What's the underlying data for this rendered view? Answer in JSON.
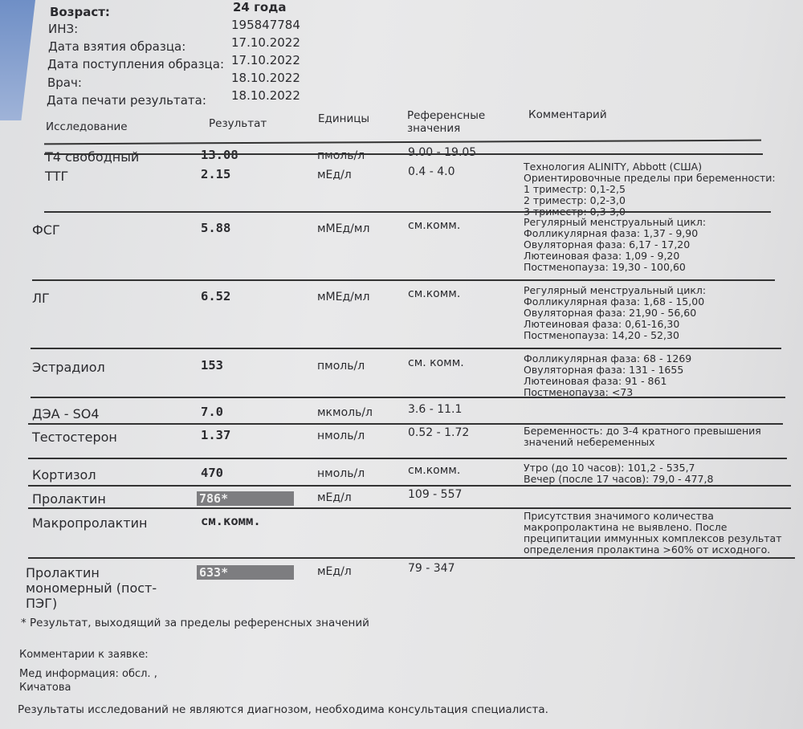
{
  "header": {
    "fields": [
      {
        "label": "Возраст:",
        "value": "24 года"
      },
      {
        "label": "ИНЗ:",
        "value": "195847784"
      },
      {
        "label": "Дата взятия образца:",
        "value": "17.10.2022"
      },
      {
        "label": "Дата поступления образца:",
        "value": "17.10.2022"
      },
      {
        "label": "Врач:",
        "value": "18.10.2022"
      },
      {
        "label": "Дата печати результата:",
        "value": "18.10.2022"
      }
    ]
  },
  "table": {
    "columns": [
      "Исследование",
      "Результат",
      "Единицы",
      "Референсные значения",
      "Комментарий"
    ],
    "rows": [
      {
        "name": "Т4 свободный",
        "result": "13.08",
        "unit": "пмоль/л",
        "ref": "9.00 - 19.05",
        "comment": []
      },
      {
        "name": "ТТГ",
        "result": "2.15",
        "unit": "мЕд/л",
        "ref": "0.4 - 4.0",
        "comment": [
          "Технология ALINITY, Abbott (США)",
          "Ориентировочные пределы при беременности:",
          "1 триместр: 0,1-2,5",
          "2 триместр: 0,2-3,0",
          "3 триместр: 0,3-3,0"
        ]
      },
      {
        "name": "ФСГ",
        "result": "5.88",
        "unit": "мМЕд/мл",
        "ref": "см.комм.",
        "comment": [
          "Регулярный менструальный цикл:",
          "Фолликулярная фаза: 1,37 - 9,90",
          "Овуляторная фаза: 6,17 - 17,20",
          "Лютеиновая фаза: 1,09 - 9,20",
          "Постменопауза: 19,30 - 100,60"
        ]
      },
      {
        "name": "ЛГ",
        "result": "6.52",
        "unit": "мМЕд/мл",
        "ref": "см.комм.",
        "comment": [
          "Регулярный менструальный цикл:",
          "Фолликулярная фаза: 1,68 - 15,00",
          "Овуляторная фаза: 21,90 - 56,60",
          "Лютеиновая фаза: 0,61-16,30",
          "Постменопауза: 14,20 - 52,30"
        ]
      },
      {
        "name": "Эстрадиол",
        "result": "153",
        "unit": "пмоль/л",
        "ref": "см. комм.",
        "comment": [
          "Фолликулярная фаза: 68 - 1269",
          "Овуляторная фаза: 131 - 1655",
          "Лютеиновая фаза: 91 - 861",
          "Постменопауза: <73"
        ]
      },
      {
        "name": "ДЭА - SO4",
        "result": "7.0",
        "unit": "мкмоль/л",
        "ref": "3.6 - 11.1",
        "comment": []
      },
      {
        "name": "Тестостерон",
        "result": "1.37",
        "unit": "нмоль/л",
        "ref": "0.52 - 1.72",
        "comment": [
          "Беременность: до 3-4 кратного превышения",
          "значений небеременных"
        ]
      },
      {
        "name": "Кортизол",
        "result": "470",
        "unit": "нмоль/л",
        "ref": "см.комм.",
        "comment": [
          "Утро (до 10 часов): 101,2 - 535,7",
          "Вечер (после 17 часов): 79,0 - 477,8"
        ]
      },
      {
        "name": "Пролактин",
        "result": "786*",
        "unit": "мЕд/л",
        "ref": "109 - 557",
        "comment": [],
        "flagged": true
      },
      {
        "name": "Макропролактин",
        "result": "см.комм.",
        "unit": "",
        "ref": "",
        "comment": [
          "Присутствия значимого количества",
          "макропролактина не выявлено. После",
          "преципитации иммунных комплексов результат",
          "определения пролактина >60% от исходного."
        ]
      },
      {
        "name": "Пролактин мономерный (пост-ПЭГ)",
        "name_lines": [
          "Пролактин",
          "мономерный (пост-",
          "ПЭГ)"
        ],
        "result": "633*",
        "unit": "мЕд/л",
        "ref": "79 - 347",
        "comment": [],
        "flagged": true
      }
    ]
  },
  "footer": {
    "note": "* Результат, выходящий за пределы референсных значений",
    "comments_label": "Комментарии к заявке:",
    "med_info": "Мед информация: обсл. ,",
    "name": "Кичатова",
    "disclaimer": "Результаты исследований не являются диагнозом, необходима консультация специалиста."
  },
  "colors": {
    "flag_bg": "#7d7d80",
    "corner": "#6f8fc6"
  }
}
